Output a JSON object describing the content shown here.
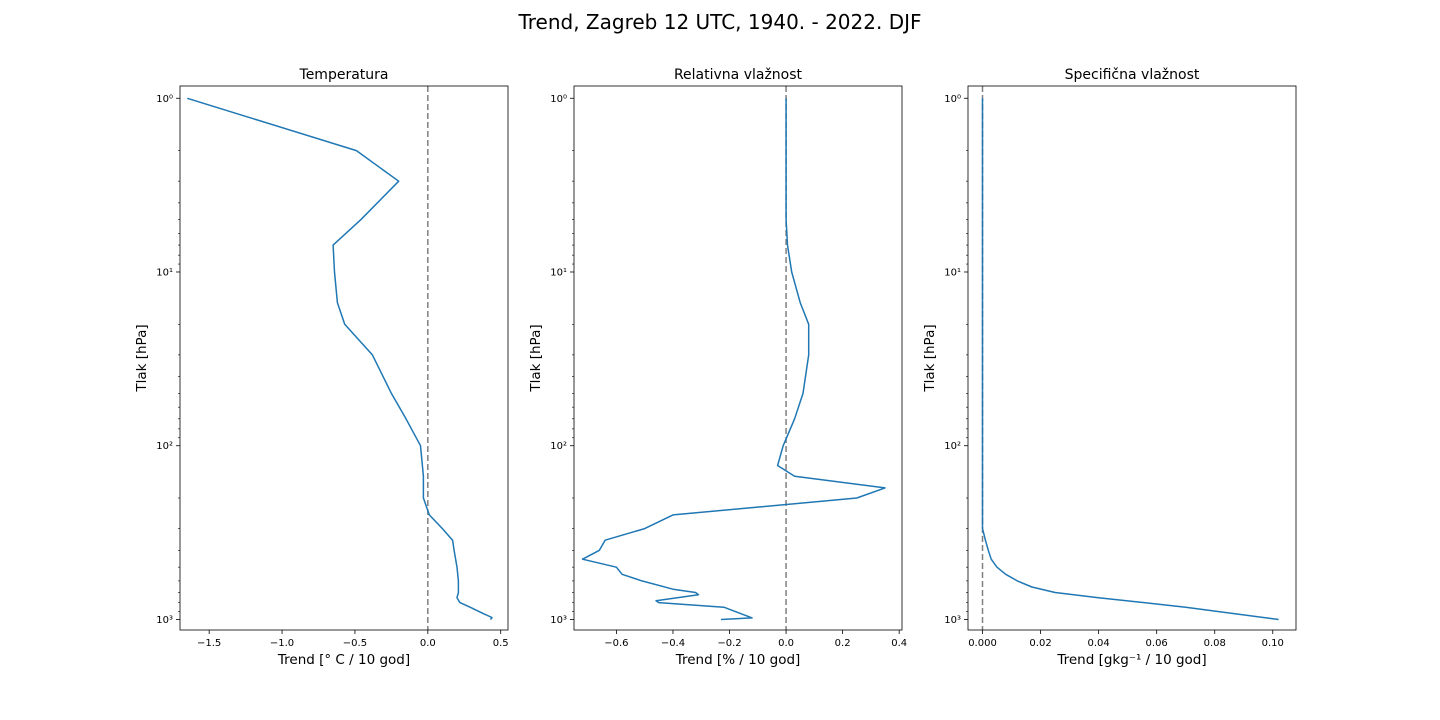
{
  "suptitle": "Trend, Zagreb 12 UTC, 1940. - 2022. DJF",
  "colors": {
    "line": "#1f77b4",
    "zero_line": "#808080"
  },
  "chart_data": [
    {
      "type": "line",
      "title": "Temperatura",
      "xlabel": "Trend [$^{\\circ}$ C / 10 god]",
      "xlabel_text": "Trend [° C / 10 god]",
      "ylabel": "Tlak [hPa]",
      "yscale": "log",
      "yinverted": true,
      "xlim": [
        -1.7,
        0.55
      ],
      "ylim": [
        1150,
        0.85
      ],
      "xticks": [
        -1.5,
        -1.0,
        -0.5,
        0.0,
        0.5
      ],
      "xtick_labels": [
        "−1.5",
        "−1.0",
        "−0.5",
        "0.0",
        "0.5"
      ],
      "yticks": [
        1,
        10,
        100,
        1000
      ],
      "ytick_labels": [
        "10⁰",
        "10¹",
        "10²",
        "10³"
      ],
      "vline_x": 0,
      "series": [
        {
          "x": [
            -1.65,
            -0.49,
            -0.2,
            -0.46,
            -0.65,
            -0.64,
            -0.62,
            -0.57,
            -0.38,
            -0.25,
            -0.15,
            -0.05,
            -0.03,
            -0.03,
            0.01,
            0.1,
            0.17,
            0.18,
            0.2,
            0.21,
            0.21,
            0.2,
            0.22,
            0.29,
            0.38,
            0.44,
            0.43
          ],
          "y": [
            1,
            2,
            3,
            5,
            7,
            10,
            15,
            20,
            30,
            50,
            70,
            100,
            150,
            200,
            250,
            300,
            350,
            400,
            500,
            600,
            700,
            750,
            800,
            850,
            925,
            975,
            1000
          ]
        }
      ]
    },
    {
      "type": "line",
      "title": "Relativna vlažnost",
      "xlabel": "Trend [% / 10 god]",
      "ylabel": "Tlak [hPa]",
      "yscale": "log",
      "yinverted": true,
      "xlim": [
        -0.75,
        0.41
      ],
      "ylim": [
        1150,
        0.85
      ],
      "xticks": [
        -0.6,
        -0.4,
        -0.2,
        0.0,
        0.2,
        0.4
      ],
      "xtick_labels": [
        "−0.6",
        "−0.4",
        "−0.2",
        "0.0",
        "0.2",
        "0.4"
      ],
      "yticks": [
        1,
        10,
        100,
        1000
      ],
      "ytick_labels": [
        "10⁰",
        "10¹",
        "10²",
        "10³"
      ],
      "vline_x": 0,
      "series": [
        {
          "x": [
            0.0,
            0.0,
            0.0,
            0.0,
            0.005,
            0.02,
            0.05,
            0.08,
            0.08,
            0.06,
            0.03,
            -0.01,
            -0.03,
            0.03,
            0.35,
            0.25,
            -0.4,
            -0.5,
            -0.64,
            -0.66,
            -0.72,
            -0.6,
            -0.58,
            -0.51,
            -0.4,
            -0.32,
            -0.31,
            -0.46,
            -0.45,
            -0.22,
            -0.12,
            -0.23
          ],
          "y": [
            1,
            2,
            3,
            5,
            7,
            10,
            15,
            20,
            30,
            50,
            70,
            100,
            130,
            150,
            175,
            200,
            250,
            300,
            350,
            400,
            450,
            500,
            550,
            600,
            670,
            700,
            720,
            780,
            800,
            850,
            980,
            1000
          ]
        }
      ]
    },
    {
      "type": "line",
      "title": "Specifična vlažnost",
      "xlabel": "Trend [gkg$^{-1}$ / 10 god]",
      "xlabel_text": "Trend [gkg⁻¹ / 10 god]",
      "ylabel": "Tlak [hPa]",
      "yscale": "log",
      "yinverted": true,
      "xlim": [
        -0.005,
        0.108
      ],
      "ylim": [
        1150,
        0.85
      ],
      "xticks": [
        0.0,
        0.02,
        0.04,
        0.06,
        0.08,
        0.1
      ],
      "xtick_labels": [
        "0.000",
        "0.02",
        "0.04",
        "0.06",
        "0.08",
        "0.10"
      ],
      "yticks": [
        1,
        10,
        100,
        1000
      ],
      "ytick_labels": [
        "10⁰",
        "10¹",
        "10²",
        "10³"
      ],
      "vline_x": 0,
      "series": [
        {
          "x": [
            0.0,
            0.0,
            0.0,
            0.0,
            0.0,
            0.0,
            0.0,
            0.0,
            0.0,
            0.0,
            0.0,
            0.0,
            0.0,
            0.0,
            0.0,
            0.0,
            0.001,
            0.002,
            0.003,
            0.005,
            0.008,
            0.012,
            0.017,
            0.025,
            0.04,
            0.07,
            0.102
          ],
          "y": [
            1,
            2,
            3,
            5,
            7,
            10,
            15,
            20,
            30,
            50,
            70,
            100,
            150,
            200,
            250,
            300,
            350,
            400,
            450,
            500,
            550,
            600,
            650,
            700,
            750,
            850,
            1000
          ]
        }
      ]
    }
  ]
}
